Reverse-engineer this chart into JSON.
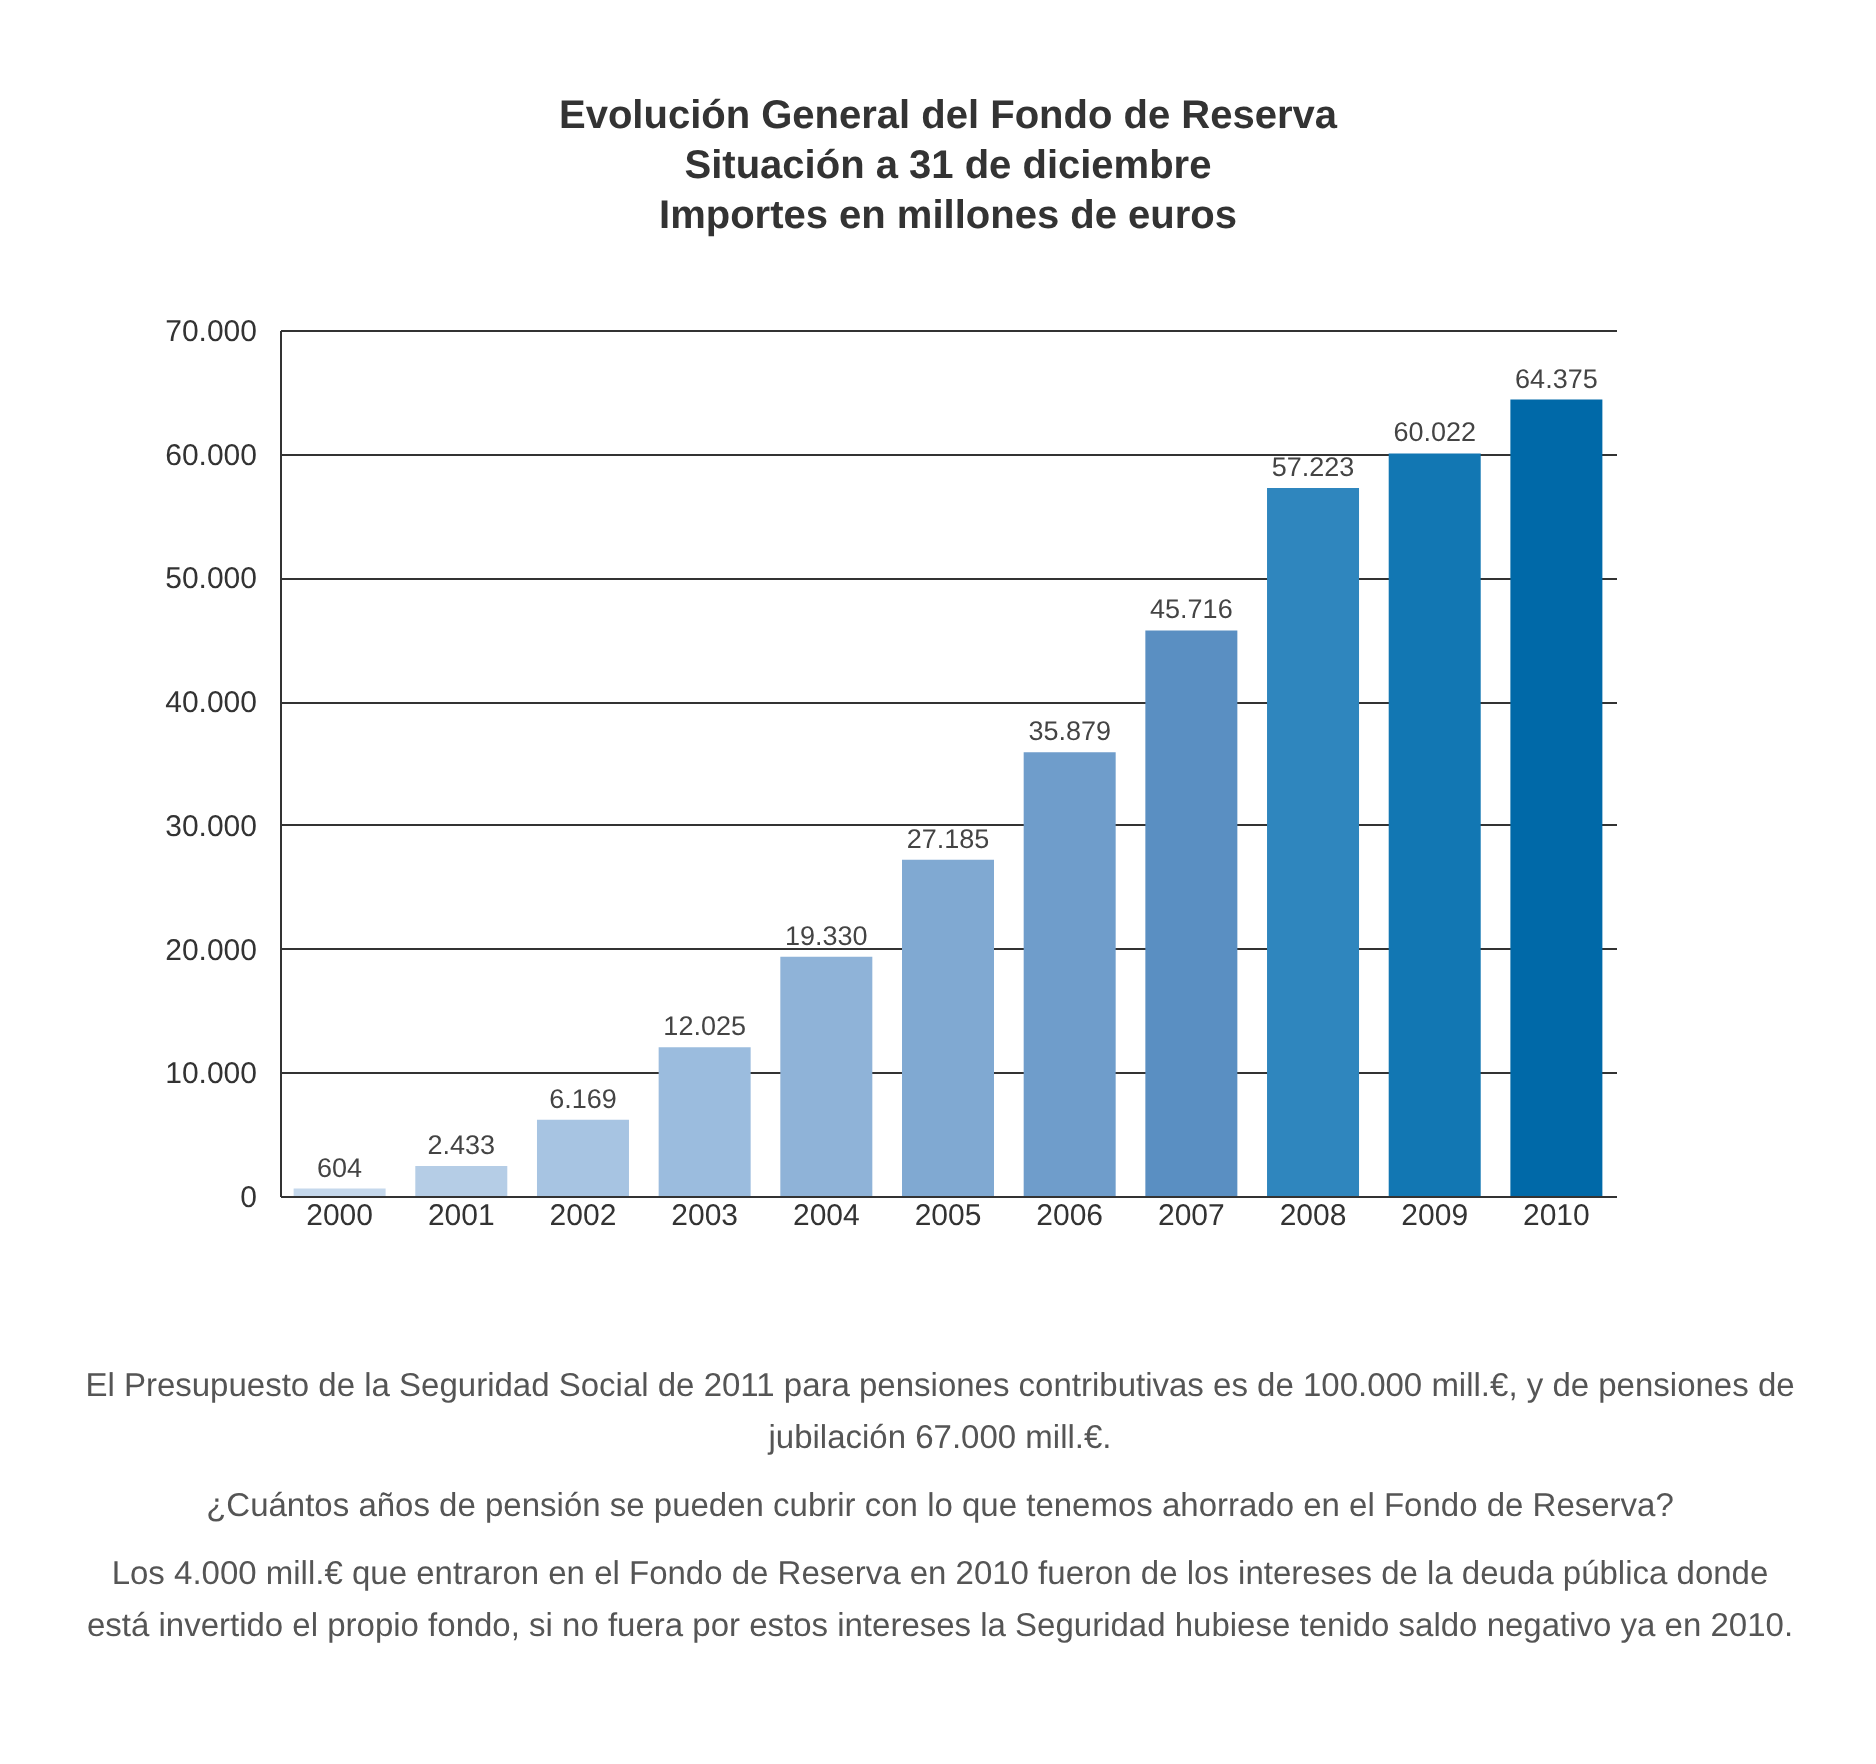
{
  "chart_data": {
    "type": "bar",
    "title": "Evolución General del Fondo de Reserva",
    "subtitle": "Situación a 31 de diciembre\nImportes en millones de euros",
    "categories": [
      "2000",
      "2001",
      "2002",
      "2003",
      "2004",
      "2005",
      "2006",
      "2007",
      "2008",
      "2009",
      "2010"
    ],
    "values": [
      604,
      2433,
      6169,
      12025,
      19330,
      27185,
      35879,
      45716,
      57223,
      60022,
      64375
    ],
    "value_labels": [
      "604",
      "2.433",
      "6.169",
      "12.025",
      "19.330",
      "27.185",
      "35.879",
      "45.716",
      "57.223",
      "60.022",
      "64.375"
    ],
    "colors": [
      "#c5d8ec",
      "#b5cde6",
      "#a7c4e2",
      "#9bbcde",
      "#8fb3d8",
      "#80a9d2",
      "#6f9dcb",
      "#5a8fc2",
      "#2f86be",
      "#1277b3",
      "#0069a8"
    ],
    "ylim": [
      0,
      70000
    ],
    "yticks": [
      {
        "value": 0,
        "label": "0"
      },
      {
        "value": 10000,
        "label": "10.000"
      },
      {
        "value": 20000,
        "label": "20.000"
      },
      {
        "value": 30000,
        "label": "30.000"
      },
      {
        "value": 40000,
        "label": "40.000"
      },
      {
        "value": 50000,
        "label": "50.000"
      },
      {
        "value": 60000,
        "label": "60.000"
      },
      {
        "value": 70000,
        "label": "70.000"
      }
    ],
    "grid": "y",
    "legend": false,
    "annotations": [
      "El Presupuesto de la Seguridad Social de 2011 para pensiones contributivas es de 100.000 mill.€, y de pensiones de jubilación 67.000 mill.€.",
      "¿Cuántos años de pensión se pueden cubrir con lo que tenemos ahorrado en el Fondo de Reserva?",
      "Los 4.000 mill.€ que entraron en el Fondo de Reserva en 2010 fueron de los intereses de la deuda pública donde está invertido el propio fondo, si no fuera por estos intereses la Seguridad hubiese tenido saldo negativo ya en 2010."
    ]
  }
}
